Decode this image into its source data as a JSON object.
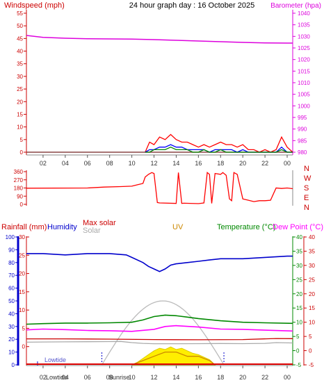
{
  "chart_data": [
    {
      "type": "line",
      "title": "24 hour graph day : 16 October 2025",
      "left_axis": {
        "label": "Windspeed (mph)",
        "ylim": [
          0,
          55
        ],
        "ticks": [
          0,
          5,
          10,
          15,
          20,
          25,
          30,
          35,
          40,
          45,
          50,
          55
        ]
      },
      "right_axis": {
        "label": "Barometer (hpa)",
        "ylim": [
          980,
          1040
        ],
        "ticks": [
          980,
          985,
          990,
          995,
          1000,
          1005,
          1010,
          1015,
          1020,
          1025,
          1030,
          1035,
          1040
        ]
      },
      "x_ticks": [
        "02",
        "04",
        "06",
        "08",
        "10",
        "12",
        "14",
        "16",
        "18",
        "20",
        "22",
        "00"
      ],
      "x_range_hours": [
        0.5,
        24.5
      ],
      "series": [
        {
          "name": "Barometer",
          "axis": "right",
          "color": "#dd00dd",
          "x": [
            0.5,
            2,
            4,
            6,
            8,
            10,
            12,
            14,
            16,
            18,
            20,
            22,
            24,
            24.5
          ],
          "values": [
            1030.4,
            1029.6,
            1029.2,
            1029.0,
            1028.9,
            1028.8,
            1028.6,
            1028.3,
            1028.0,
            1027.7,
            1027.4,
            1027.2,
            1027.1,
            1027.1
          ]
        },
        {
          "name": "Wind gust",
          "axis": "left",
          "color": "#ff0000",
          "x": [
            11.2,
            11.6,
            12,
            12.5,
            13,
            13.5,
            14,
            14.5,
            15,
            15.5,
            16,
            16.5,
            17,
            17.5,
            18,
            18.5,
            19,
            19.5,
            20,
            20.5,
            21,
            21.5,
            22,
            22.5,
            23,
            23.5,
            24,
            24.5
          ],
          "values": [
            0,
            4,
            3,
            6,
            5,
            7,
            5,
            4,
            4,
            3,
            2,
            3,
            2,
            3,
            4,
            3,
            3,
            2,
            3,
            1,
            1,
            0,
            1,
            0,
            1,
            6,
            2,
            0
          ]
        },
        {
          "name": "Wind speed",
          "axis": "left",
          "color": "#0000ff",
          "x": [
            11.2,
            11.6,
            12,
            12.5,
            13,
            13.5,
            14,
            14.5,
            15,
            15.5,
            16,
            16.5,
            17,
            17.5,
            18,
            18.5,
            19,
            19.5,
            20,
            20.5,
            21,
            21.5,
            22,
            22.5,
            23,
            23.5,
            24,
            24.5
          ],
          "values": [
            0,
            1,
            1,
            2,
            2,
            3,
            2,
            2,
            1,
            1,
            1,
            1,
            0,
            1,
            1,
            1,
            1,
            0,
            1,
            0,
            0,
            0,
            0,
            0,
            0,
            2,
            0,
            0
          ]
        },
        {
          "name": "Wind average",
          "axis": "left",
          "color": "#008800",
          "x": [
            11.2,
            11.6,
            12,
            12.5,
            13,
            13.5,
            14,
            14.5,
            15,
            15.5,
            16,
            16.5,
            17,
            17.5,
            18,
            18.5,
            19,
            19.5,
            20,
            20.5,
            21,
            21.5,
            22,
            22.5,
            23,
            23.5,
            24,
            24.5
          ],
          "values": [
            0,
            0,
            1,
            1,
            1,
            2,
            1,
            1,
            1,
            0,
            0,
            1,
            0,
            0,
            1,
            0,
            0,
            0,
            0,
            0,
            0,
            0,
            0,
            0,
            0,
            1,
            0,
            0
          ]
        }
      ]
    },
    {
      "type": "line",
      "left_axis": {
        "ylim": [
          0,
          360
        ],
        "ticks": [
          0,
          90,
          180,
          270,
          360
        ]
      },
      "right_labels": [
        "N",
        "W",
        "S",
        "E",
        "N"
      ],
      "series": [
        {
          "name": "Wind direction",
          "color": "#ff0000",
          "x": [
            0.5,
            6,
            7.5,
            9,
            10,
            10.5,
            11,
            11.2,
            11.5,
            11.8,
            12,
            12.3,
            12.5,
            14,
            14.2,
            14.5,
            14.7,
            16,
            16.5,
            16.8,
            17,
            17.2,
            17.5,
            18,
            18.2,
            18.5,
            18.8,
            19,
            19.2,
            19.5,
            20,
            20.5,
            21,
            21.5,
            22,
            22.5,
            23,
            23.5,
            24,
            24.5
          ],
          "values": [
            178,
            180,
            190,
            195,
            200,
            215,
            230,
            300,
            330,
            350,
            340,
            20,
            15,
            10,
            350,
            10,
            12,
            8,
            15,
            350,
            330,
            10,
            340,
            330,
            350,
            320,
            60,
            40,
            350,
            330,
            60,
            45,
            30,
            40,
            40,
            45,
            180,
            175,
            180,
            172
          ]
        }
      ]
    },
    {
      "type": "line",
      "axes": {
        "rainfall": {
          "label": "Rainfall (mm)",
          "ylim": [
            0,
            100
          ],
          "ticks": [
            0,
            10,
            20,
            30,
            40,
            50,
            60,
            70,
            80,
            90,
            100
          ]
        },
        "humidity": {
          "label": "Humidity",
          "ylim": [
            -5,
            30
          ],
          "ticks": [
            0,
            5,
            10,
            15,
            20,
            25,
            30
          ]
        },
        "temperature": {
          "label": "Temperature (°C)",
          "ylim": [
            -5,
            40
          ],
          "ticks": [
            -5,
            0,
            5,
            10,
            15,
            20,
            25,
            30,
            35,
            40
          ]
        },
        "dewpoint": {
          "label": "Dew Point (°C)",
          "ylim": [
            -5,
            40
          ],
          "ticks": [
            -5,
            0,
            5,
            10,
            15,
            20,
            25,
            30,
            35,
            40
          ]
        }
      },
      "legend": {
        "max_solar": "Max solar",
        "solar": "Solar",
        "uv": "UV"
      },
      "x_ticks": [
        "02",
        "04",
        "06",
        "08",
        "10",
        "12",
        "14",
        "16",
        "18",
        "20",
        "22",
        "00"
      ],
      "annotations": {
        "lowtide": "Lowtide",
        "sunrise": "Sunrise",
        "sunrise_hour": 7.3,
        "sunset_hour": 18.3,
        "lowtide_hour": 1.5
      },
      "series": [
        {
          "name": "Humidity",
          "color": "#0000cc",
          "x": [
            0.5,
            2,
            4,
            6,
            8,
            9.5,
            10,
            11,
            11.5,
            12,
            12.5,
            13,
            13.5,
            14,
            15,
            16,
            17,
            18,
            19,
            20,
            22,
            24,
            24.5
          ],
          "values": [
            87,
            87,
            86,
            87,
            87,
            86,
            84,
            80,
            77,
            75,
            73,
            75,
            78,
            79,
            80,
            81,
            82,
            83,
            83,
            83,
            84,
            85,
            85
          ]
        },
        {
          "name": "Max solar",
          "color": "#cc0000",
          "x": [
            0.5,
            4,
            8,
            12,
            14,
            16,
            20,
            23,
            24.5
          ],
          "values": [
            20.3,
            20.3,
            20.1,
            19.8,
            19.7,
            19.6,
            19.8,
            20.6,
            20.5
          ]
        },
        {
          "name": "Solar",
          "color": "#aaaaaa",
          "x": [
            0.5,
            2,
            4,
            6,
            8,
            9,
            10,
            11,
            12,
            14,
            16,
            18,
            20,
            22,
            23,
            24.5
          ],
          "values": [
            17.7,
            17.9,
            18.0,
            18.1,
            18.2,
            18.3,
            17.4,
            16.8,
            16.5,
            16.5,
            16.6,
            16.7,
            16.6,
            16.8,
            17.4,
            17.1
          ]
        },
        {
          "name": "Temperature",
          "color": "#008800",
          "x": [
            0.5,
            2,
            4,
            6,
            8,
            10,
            11,
            12,
            13,
            14,
            15,
            16,
            18,
            20,
            22,
            24.5
          ],
          "values": [
            9.3,
            9.5,
            9.7,
            9.7,
            9.8,
            10.0,
            10.8,
            12.0,
            12.5,
            12.3,
            11.8,
            11.3,
            10.5,
            10.0,
            9.8,
            9.6
          ]
        },
        {
          "name": "Dew Point",
          "color": "#ff00ff",
          "x": [
            0.5,
            2,
            4,
            6,
            8,
            10,
            12,
            13,
            14,
            16,
            18,
            20,
            22,
            24.5
          ],
          "values": [
            7.3,
            7.6,
            7.4,
            7.1,
            7.0,
            6.8,
            7.5,
            8.5,
            8.8,
            8.3,
            7.6,
            7.5,
            7.2,
            6.9
          ]
        },
        {
          "name": "UV",
          "color": "#cc8800",
          "x": [
            10,
            11,
            12,
            13,
            14,
            15,
            16,
            17,
            17.5
          ],
          "values": [
            0,
            1,
            2,
            3,
            3,
            2,
            2,
            1,
            0
          ]
        }
      ]
    }
  ]
}
